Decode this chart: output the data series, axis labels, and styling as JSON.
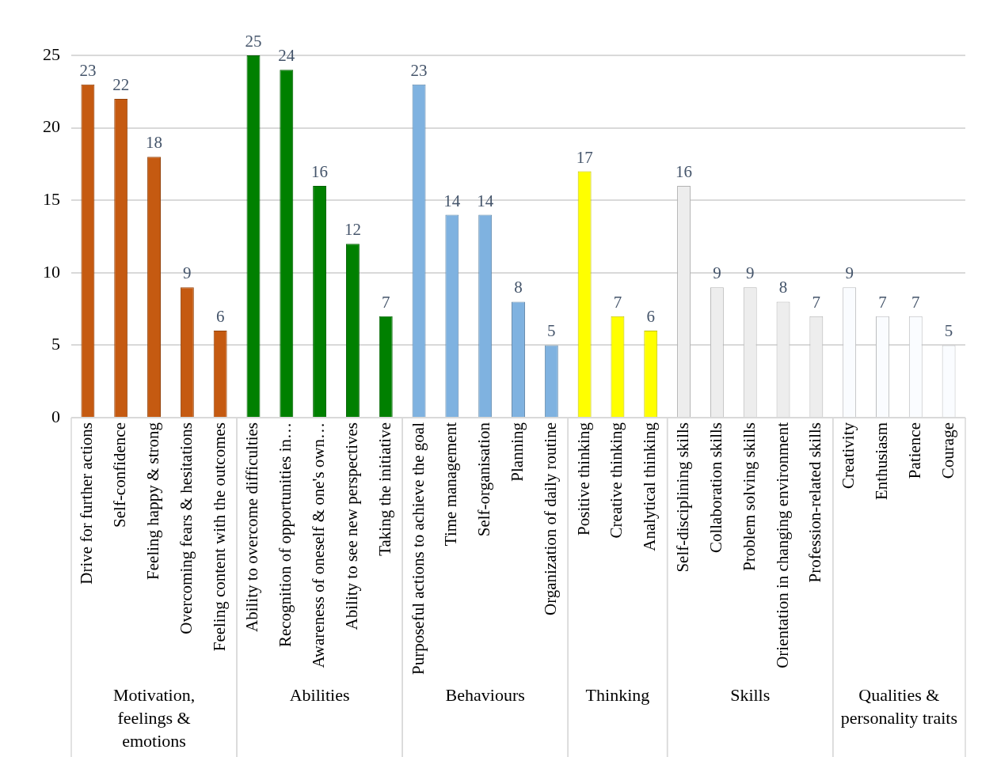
{
  "chart_data": {
    "type": "bar",
    "categories": [
      "Drive for further actions",
      "Self-confidence",
      "Feeling happy & strong",
      "Overcoming fears & hesitations",
      "Feeling content with the outcomes",
      "Ability to overcome difficulties",
      "Recognition of opportunities in…",
      "Awareness of oneself & one's own…",
      "Ability to see new perspectives",
      "Taking the initiative",
      "Purposeful actions to achieve the goal",
      "Time management",
      "Self-organisation",
      "Planning",
      "Organization of daily routine",
      "Positive thinking",
      "Creative thinking",
      "Analytical thinking",
      "Self-disciplining skills",
      "Collaboration skills",
      "Problem solving skills",
      "Orientation in changing environment",
      "Profession-related skills",
      "Creativity",
      "Enthusiasm",
      "Patience",
      "Courage"
    ],
    "values": [
      23,
      22,
      18,
      9,
      6,
      25,
      24,
      16,
      12,
      7,
      23,
      14,
      14,
      8,
      5,
      17,
      7,
      6,
      16,
      9,
      9,
      8,
      7,
      9,
      7,
      7,
      5
    ],
    "colors": [
      "#c55a11",
      "#c55a11",
      "#c55a11",
      "#c55a11",
      "#c55a11",
      "#008000",
      "#008000",
      "#008000",
      "#008000",
      "#008000",
      "#7fb2e0",
      "#7fb2e0",
      "#7fb2e0",
      "#7fb2e0",
      "#7fb2e0",
      "#ffff00",
      "#ffff00",
      "#ffff00",
      "#ededed",
      "#ededed",
      "#ededed",
      "#ededed",
      "#ededed",
      "#fafcff",
      "#fafcff",
      "#fafcff",
      "#fafcff"
    ],
    "annotations": [
      "Motivation, feelings & emotions",
      "Abilities",
      "Behaviours",
      "Thinking",
      "Skills",
      "Qualities & personality traits"
    ],
    "ylim": [
      0,
      25
    ],
    "yticks": [
      0,
      5,
      10,
      15,
      20,
      25
    ],
    "grid": "y",
    "data_labels": true,
    "legend": false
  }
}
